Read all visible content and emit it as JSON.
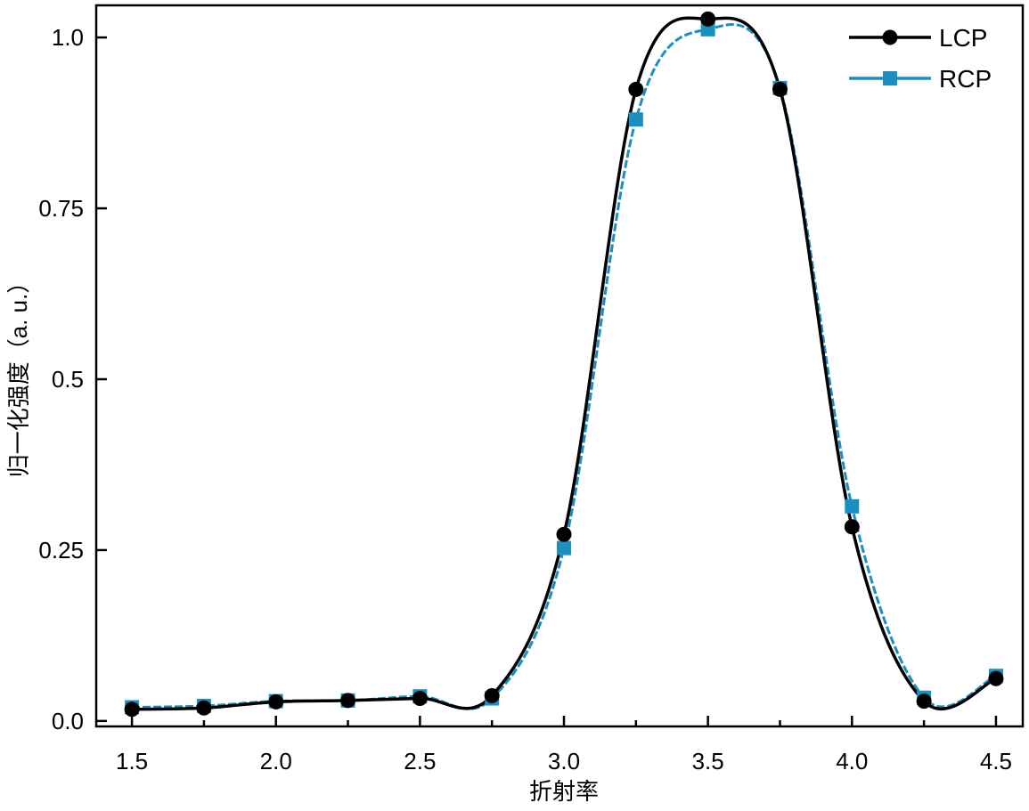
{
  "chart_data": {
    "type": "line",
    "title": "",
    "xlabel": "折射率",
    "ylabel": "归一化强度（a. u.）",
    "xlim": [
      1.376,
      4.593
    ],
    "ylim": [
      -0.008,
      1.047
    ],
    "xticks": [
      1.5,
      2.0,
      2.5,
      3.0,
      3.5,
      4.0,
      4.5
    ],
    "xtick_labels": [
      "1.5",
      "2.0",
      "2.5",
      "3.0",
      "3.5",
      "4.0",
      "4.5"
    ],
    "yticks": [
      0.0,
      0.25,
      0.5,
      0.75,
      1.0
    ],
    "ytick_labels": [
      "0.0",
      "0.25",
      "0.5",
      "0.75",
      "1.0"
    ],
    "minor_xticks": [
      1.75,
      2.25,
      2.75,
      3.25,
      3.75,
      4.25
    ],
    "grid": false,
    "legend_position": "top-right",
    "x": [
      1.5,
      1.75,
      2.0,
      2.25,
      2.5,
      2.75,
      3.0,
      3.25,
      3.5,
      3.75,
      4.0,
      4.25,
      4.5
    ],
    "series": [
      {
        "name": "LCP",
        "color": "#000000",
        "marker": "circle",
        "dash": "solid",
        "values": [
          0.017,
          0.019,
          0.028,
          0.03,
          0.033,
          0.037,
          0.273,
          0.924,
          1.027,
          0.924,
          0.284,
          0.029,
          0.062
        ]
      },
      {
        "name": "RCP",
        "color": "#1a8fc0",
        "marker": "square",
        "dash": "dashed",
        "values": [
          0.02,
          0.022,
          0.029,
          0.03,
          0.036,
          0.033,
          0.253,
          0.88,
          1.012,
          0.926,
          0.314,
          0.034,
          0.066
        ]
      }
    ]
  }
}
